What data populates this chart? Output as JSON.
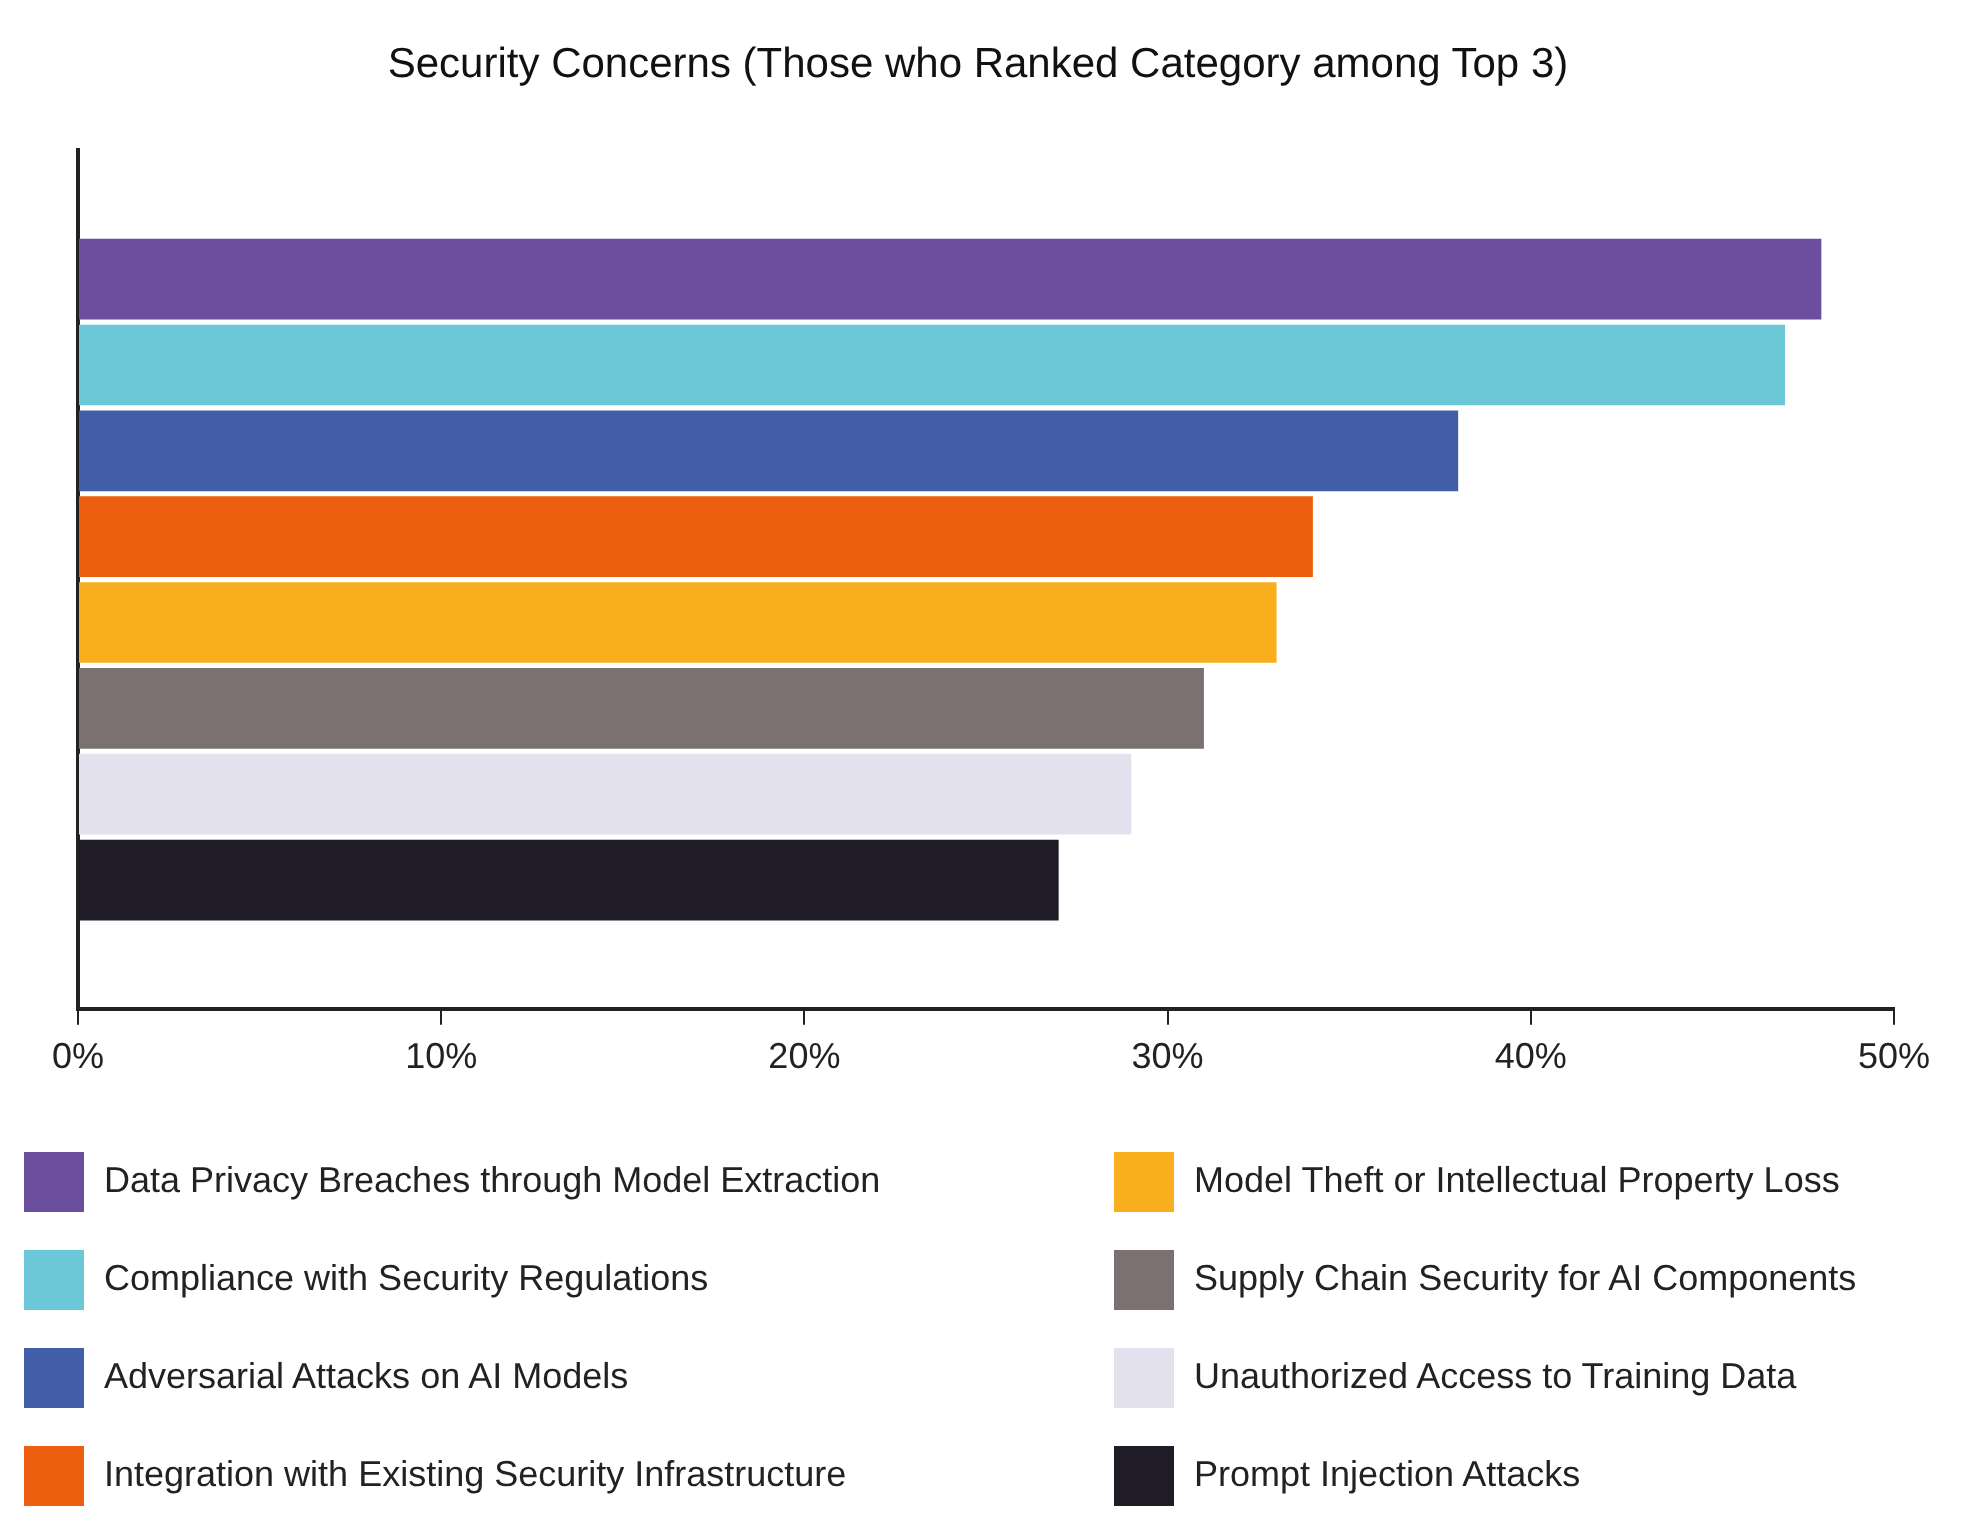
{
  "chart_data": {
    "type": "bar",
    "orientation": "horizontal",
    "title": "Security Concerns (Those who Ranked Category among Top 3)",
    "categories": [
      null
    ],
    "series": [
      {
        "name": "Data Privacy Breaches through Model Extraction",
        "color": "#6b4f9e",
        "values": [
          48
        ]
      },
      {
        "name": "Compliance with Security Regulations",
        "color": "#6cc7d6",
        "values": [
          47
        ]
      },
      {
        "name": "Adversarial Attacks on AI Models",
        "color": "#425ea8",
        "values": [
          38
        ]
      },
      {
        "name": "Integration with Existing Security Infrastructure",
        "color": "#eb5f0e",
        "values": [
          34
        ]
      },
      {
        "name": "Model Theft or Intellectual Property Loss",
        "color": "#f9ae1e",
        "values": [
          33
        ]
      },
      {
        "name": "Supply Chain Security for AI Components",
        "color": "#7a7170",
        "values": [
          31
        ]
      },
      {
        "name": "Unauthorized Access to Training Data",
        "color": "#e3e1ed",
        "values": [
          29
        ]
      },
      {
        "name": "Prompt Injection Attacks",
        "color": "#1f1c27",
        "values": [
          27
        ]
      }
    ],
    "xlim": [
      0,
      50
    ],
    "xticks": [
      {
        "value": 0,
        "label": "0%"
      },
      {
        "value": 10,
        "label": "10%"
      },
      {
        "value": 20,
        "label": "20%"
      },
      {
        "value": 30,
        "label": "30%"
      },
      {
        "value": 40,
        "label": "40%"
      },
      {
        "value": 50,
        "label": "50%"
      }
    ],
    "grid": false,
    "legend": "bottom"
  }
}
